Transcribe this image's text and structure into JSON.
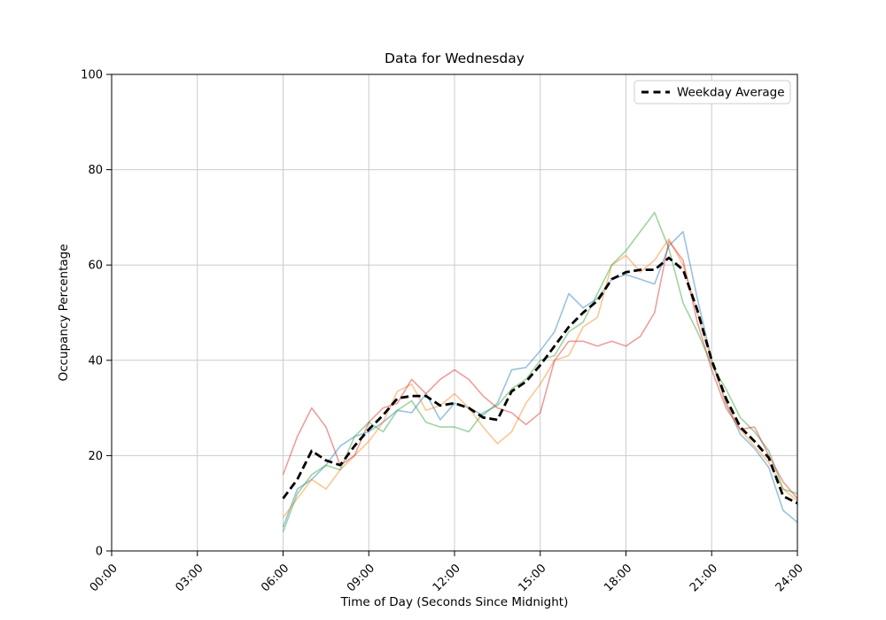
{
  "figure": {
    "background": "#ffffff",
    "spine_color": "#000000",
    "grid_color": "#cccccc",
    "grid_on": true
  },
  "chart_data": {
    "type": "line",
    "title": "Data for Wednesday",
    "xlabel": "Time of Day (Seconds Since Midnight)",
    "ylabel": "Occupancy Percentage",
    "ylim": [
      0,
      100
    ],
    "xlim_hours": [
      0,
      24
    ],
    "x_tick_hours": [
      0,
      3,
      6,
      9,
      12,
      15,
      18,
      21,
      24
    ],
    "x_tick_labels": [
      "00:00",
      "03:00",
      "06:00",
      "09:00",
      "12:00",
      "15:00",
      "18:00",
      "21:00",
      "24:00"
    ],
    "y_ticks": [
      0,
      20,
      40,
      60,
      80,
      100
    ],
    "legend": {
      "position": "upper right",
      "entries": [
        {
          "label": "Weekday Average",
          "color": "#000000",
          "dashed": true
        }
      ]
    },
    "x_hours": [
      6,
      6.5,
      7,
      7.5,
      8,
      8.5,
      9,
      9.5,
      10,
      10.5,
      11,
      11.5,
      12,
      12.5,
      13,
      13.5,
      14,
      14.5,
      15,
      15.5,
      16,
      16.5,
      17,
      17.5,
      18,
      18.5,
      19,
      19.5,
      20,
      20.5,
      21,
      21.5,
      22,
      22.5,
      23,
      23.5,
      24
    ],
    "series": [
      {
        "name": "weekday-series-blue",
        "color": "#1f77b4",
        "opacity": 0.45,
        "width": 1.6,
        "dashed": false,
        "values": [
          5,
          13,
          15,
          18,
          22,
          24,
          25,
          27,
          29.5,
          29,
          33,
          27.5,
          31,
          30,
          28.5,
          31,
          38,
          38.5,
          42,
          46,
          54,
          51,
          53,
          57,
          58,
          57,
          56,
          64,
          67,
          53,
          40,
          31,
          24.5,
          21.5,
          17.5,
          8.5,
          6
        ]
      },
      {
        "name": "weekday-series-orange",
        "color": "#ff7f0e",
        "opacity": 0.45,
        "width": 1.6,
        "dashed": false,
        "values": [
          7,
          11,
          15,
          13,
          17,
          20,
          23,
          27,
          33.5,
          35,
          29.5,
          30.5,
          33,
          30,
          26,
          22.5,
          25,
          31,
          35,
          40,
          41,
          47,
          49,
          60,
          62,
          58.5,
          61,
          65.5,
          60,
          50,
          40,
          31,
          25.5,
          22,
          18.5,
          13,
          10.5
        ]
      },
      {
        "name": "weekday-series-green",
        "color": "#2ca02c",
        "opacity": 0.45,
        "width": 1.6,
        "dashed": false,
        "values": [
          4,
          12,
          16,
          18,
          17,
          24,
          27,
          25,
          29.5,
          31.5,
          27,
          26,
          26,
          25,
          29,
          30.5,
          34,
          36,
          40,
          41,
          46,
          48,
          54,
          60,
          63,
          67,
          71,
          63.5,
          52,
          46,
          39,
          34,
          28,
          25,
          21,
          13,
          12
        ]
      },
      {
        "name": "weekday-series-red",
        "color": "#d62728",
        "opacity": 0.45,
        "width": 1.6,
        "dashed": false,
        "values": [
          16,
          24,
          30,
          26,
          18,
          20,
          27,
          30,
          31,
          36,
          33,
          36,
          38,
          36,
          32.5,
          30,
          29,
          26.5,
          29,
          40,
          44,
          44,
          43,
          44,
          43,
          45,
          50,
          65,
          61,
          48,
          38,
          30,
          25.5,
          26,
          20,
          14.5,
          11
        ]
      },
      {
        "name": "weekday-average",
        "color": "#000000",
        "opacity": 1,
        "width": 2.8,
        "dashed": true,
        "values": [
          11,
          15,
          21,
          19,
          18,
          22,
          25.5,
          28.5,
          32,
          32.5,
          32.5,
          30.5,
          31,
          30,
          28,
          27.5,
          33.5,
          35.5,
          39,
          43,
          47,
          50,
          52.5,
          57,
          58.5,
          59,
          59,
          61.5,
          59,
          50.5,
          40,
          32,
          26,
          23,
          19.5,
          11.5,
          10
        ]
      }
    ]
  }
}
